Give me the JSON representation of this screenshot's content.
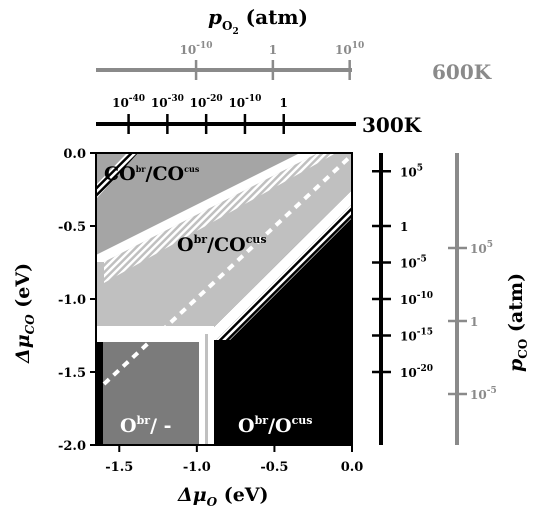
{
  "colors": {
    "black": "#000000",
    "gray_axis": "#8a8a8a",
    "light_region": "#c0c0c0",
    "medium_region": "#a5a5a5",
    "dark_region": "#7b7b7b",
    "white": "#ffffff"
  },
  "top_axis_title": {
    "p": "p",
    "sub": "O",
    "subsub": "2",
    "unit": " (atm)"
  },
  "axis_600K": {
    "label": "600K",
    "ticks": [
      {
        "base": "10",
        "exp": "-10",
        "x": -1.0
      },
      {
        "base": "1",
        "exp": "",
        "x": -0.5
      },
      {
        "base": "10",
        "exp": "10",
        "x": 0.0
      }
    ]
  },
  "axis_300K": {
    "label": "300K",
    "ticks": [
      {
        "base": "10",
        "exp": "-40",
        "x": -1.5
      },
      {
        "base": "10",
        "exp": "-30",
        "x": -1.25
      },
      {
        "base": "10",
        "exp": "-20",
        "x": -1.0
      },
      {
        "base": "10",
        "exp": "-10",
        "x": -0.75
      },
      {
        "base": "1",
        "exp": "",
        "x": -0.5
      }
    ]
  },
  "right_axis_300K": {
    "ticks": [
      {
        "base": "10",
        "exp": "5",
        "y": -0.125
      },
      {
        "base": "1",
        "exp": "",
        "y": -0.5
      },
      {
        "base": "10",
        "exp": "-5",
        "y": -0.75
      },
      {
        "base": "10",
        "exp": "-10",
        "y": -1.0
      },
      {
        "base": "10",
        "exp": "-15",
        "y": -1.25
      },
      {
        "base": "10",
        "exp": "-20",
        "y": -1.5
      }
    ]
  },
  "right_axis_600K": {
    "title": {
      "p": "p",
      "sub": "CO",
      "unit": " (atm)"
    },
    "ticks": [
      {
        "base": "10",
        "exp": "5",
        "y": -0.5
      },
      {
        "base": "1",
        "exp": "",
        "y": -1.0
      },
      {
        "base": "10",
        "exp": "-5",
        "y": -1.5
      }
    ]
  },
  "x_axis": {
    "title": {
      "delta": "Δμ",
      "sub": "O",
      "unit": " (eV)"
    },
    "range": [
      -1.65,
      0.0
    ],
    "ticks": [
      "-1.5",
      "-1.0",
      "-0.5",
      "0.0"
    ],
    "tick_values": [
      -1.5,
      -1.0,
      -0.5,
      0.0
    ]
  },
  "y_axis": {
    "title": {
      "delta": "Δμ",
      "sub": "CO",
      "unit": " (eV)"
    },
    "range": [
      -2.0,
      0.0
    ],
    "ticks": [
      "0.0",
      "-0.5",
      "-1.0",
      "-1.5",
      "-2.0"
    ],
    "tick_values": [
      0.0,
      -0.5,
      -1.0,
      -1.5,
      -2.0
    ]
  },
  "regions": {
    "co_co": {
      "base": "CO",
      "sup1": "br",
      "sep": "/CO",
      "sup2": "cus"
    },
    "o_co": {
      "base": "O",
      "sup1": "br",
      "sep": "/CO",
      "sup2": "cus"
    },
    "o_empty": {
      "base": "O",
      "sup1": "br",
      "sep": "/ -",
      "sup2": ""
    },
    "o_o": {
      "base": "O",
      "sup1": "br",
      "sep": "/O",
      "sup2": "cus"
    }
  }
}
